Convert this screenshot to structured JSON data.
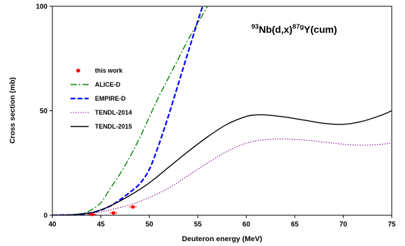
{
  "chart_data": {
    "type": "line",
    "title": {
      "pre_sup": "93",
      "part1": "Nb(d,x)",
      "sup": "87g",
      "part2": "Y(cum)"
    },
    "xlabel": "Deuteron energy (MeV)",
    "ylabel": "Cross section (mb)",
    "xlim": [
      40,
      75
    ],
    "ylim": [
      0,
      100
    ],
    "xticks": [
      40,
      45,
      50,
      55,
      60,
      65,
      70,
      75
    ],
    "yticks": [
      0,
      50,
      100
    ],
    "grid": false,
    "legend_position": "left",
    "series": [
      {
        "name": "this work",
        "kind": "points",
        "color": "#ff0000",
        "x": [
          44.1,
          46.3,
          48.3
        ],
        "y": [
          0.4,
          1.1,
          4.0
        ],
        "xerr": [
          0.4,
          0.4,
          0.4
        ]
      },
      {
        "name": "ALICE-D",
        "kind": "line",
        "style": "dashdot",
        "color": "#008000",
        "x": [
          40,
          41,
          42,
          43,
          44,
          45,
          46,
          47,
          48,
          49,
          50,
          51,
          52,
          53,
          54,
          55,
          56
        ],
        "y": [
          0,
          0.1,
          0.3,
          0.8,
          2.5,
          6,
          13,
          20,
          28,
          37,
          47,
          57,
          66,
          75,
          84,
          92,
          100
        ]
      },
      {
        "name": "EMPIRE-D",
        "kind": "line",
        "style": "dashed",
        "color": "#0000ff",
        "x": [
          40,
          41,
          42,
          43,
          44,
          45,
          46,
          47,
          48,
          49,
          50,
          51,
          52,
          53,
          54,
          55,
          55.5
        ],
        "y": [
          0,
          0.1,
          0.2,
          0.5,
          1.2,
          2.5,
          4.5,
          7.5,
          11,
          15,
          22,
          34,
          48,
          63,
          78,
          93,
          100
        ]
      },
      {
        "name": "TENDL-2014",
        "kind": "line",
        "style": "dotted",
        "color": "#800080",
        "x": [
          40,
          42,
          44,
          45,
          46,
          48,
          50,
          52,
          54,
          56,
          58,
          60,
          62,
          64,
          66,
          68,
          70,
          72,
          74,
          75
        ],
        "y": [
          0,
          0.2,
          0.9,
          1.6,
          2.6,
          5,
          8.5,
          13,
          19,
          25,
          30.5,
          34.5,
          36.2,
          36.5,
          36,
          35,
          34,
          33.5,
          34,
          34.5
        ]
      },
      {
        "name": "TENDL-2015",
        "kind": "line",
        "style": "solid",
        "color": "#000000",
        "x": [
          40,
          42,
          44,
          45,
          46,
          48,
          50,
          52,
          54,
          56,
          58,
          60,
          61,
          62,
          64,
          66,
          68,
          70,
          72,
          74,
          75
        ],
        "y": [
          0,
          0.2,
          1.2,
          2.6,
          4.5,
          9.5,
          15.5,
          23,
          30.5,
          37.5,
          43.5,
          47.3,
          48,
          48,
          47,
          45.5,
          44,
          43.5,
          45,
          48,
          50
        ]
      }
    ]
  }
}
